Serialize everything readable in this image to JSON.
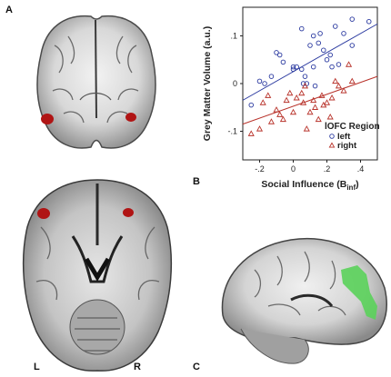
{
  "figure": {
    "panel_labels": [
      "A",
      "B",
      "C"
    ],
    "hemisphere_labels": {
      "left": "L",
      "right": "R"
    },
    "colors": {
      "highlight_red": "#b01414",
      "highlight_green": "#5ad25a",
      "left_series": "#2b3aa0",
      "right_series": "#b8322a"
    }
  },
  "chart_data": {
    "type": "scatter",
    "xlabel": "Social Influence (B",
    "xlabel_sub": "inf",
    "xlabel_close": ")",
    "ylabel": "Grey Matter Volume (a.u.)",
    "xlim": [
      -0.3,
      0.5
    ],
    "ylim": [
      -0.16,
      0.16
    ],
    "xticks": [
      -0.2,
      0,
      0.2,
      0.4
    ],
    "xtick_labels": [
      "-.2",
      "0",
      ".2",
      ".4"
    ],
    "yticks": [
      -0.1,
      0,
      0.1
    ],
    "ytick_labels": [
      "-.1",
      "0",
      ".1"
    ],
    "legend_title": "lOFC Region",
    "legend_placement": "bottom-right",
    "series": [
      {
        "name": "left",
        "marker": "circle",
        "color": "#2b3aa0",
        "fit": [
          [
            -0.3,
            -0.035
          ],
          [
            0.5,
            0.125
          ]
        ],
        "points": [
          [
            -0.25,
            -0.045
          ],
          [
            -0.2,
            0.005
          ],
          [
            -0.17,
            0.0
          ],
          [
            -0.13,
            0.015
          ],
          [
            -0.1,
            0.065
          ],
          [
            -0.08,
            0.06
          ],
          [
            -0.06,
            0.045
          ],
          [
            0.0,
            0.03
          ],
          [
            0.0,
            0.035
          ],
          [
            0.02,
            0.035
          ],
          [
            0.05,
            0.03
          ],
          [
            0.05,
            0.115
          ],
          [
            0.06,
            0.0
          ],
          [
            0.07,
            0.015
          ],
          [
            0.08,
            0.0
          ],
          [
            0.1,
            0.08
          ],
          [
            0.12,
            0.1
          ],
          [
            0.12,
            0.035
          ],
          [
            0.13,
            -0.005
          ],
          [
            0.15,
            0.085
          ],
          [
            0.16,
            0.105
          ],
          [
            0.18,
            0.07
          ],
          [
            0.2,
            0.05
          ],
          [
            0.22,
            0.06
          ],
          [
            0.23,
            0.035
          ],
          [
            0.25,
            0.12
          ],
          [
            0.27,
            0.04
          ],
          [
            0.3,
            0.105
          ],
          [
            0.35,
            0.08
          ],
          [
            0.35,
            0.135
          ],
          [
            0.45,
            0.13
          ]
        ]
      },
      {
        "name": "right",
        "marker": "triangle",
        "color": "#b8322a",
        "fit": [
          [
            -0.3,
            -0.085
          ],
          [
            0.5,
            0.015
          ]
        ],
        "points": [
          [
            -0.25,
            -0.105
          ],
          [
            -0.2,
            -0.095
          ],
          [
            -0.18,
            -0.04
          ],
          [
            -0.15,
            -0.025
          ],
          [
            -0.13,
            -0.08
          ],
          [
            -0.1,
            -0.055
          ],
          [
            -0.08,
            -0.065
          ],
          [
            -0.06,
            -0.075
          ],
          [
            -0.04,
            -0.035
          ],
          [
            -0.02,
            -0.02
          ],
          [
            0.0,
            -0.06
          ],
          [
            0.02,
            -0.03
          ],
          [
            0.05,
            -0.02
          ],
          [
            0.06,
            -0.04
          ],
          [
            0.07,
            -0.005
          ],
          [
            0.08,
            -0.095
          ],
          [
            0.1,
            -0.06
          ],
          [
            0.12,
            -0.035
          ],
          [
            0.13,
            -0.05
          ],
          [
            0.15,
            -0.075
          ],
          [
            0.17,
            -0.025
          ],
          [
            0.18,
            -0.045
          ],
          [
            0.2,
            -0.04
          ],
          [
            0.22,
            -0.07
          ],
          [
            0.23,
            -0.03
          ],
          [
            0.25,
            0.005
          ],
          [
            0.27,
            -0.005
          ],
          [
            0.3,
            -0.015
          ],
          [
            0.33,
            0.04
          ],
          [
            0.35,
            0.005
          ]
        ]
      }
    ]
  }
}
